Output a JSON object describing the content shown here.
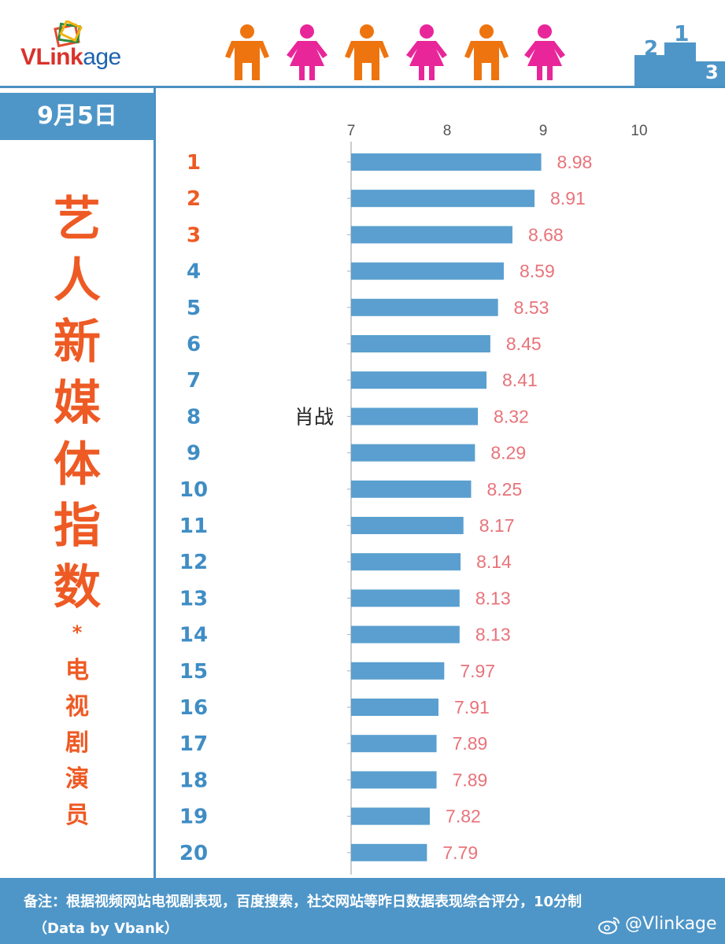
{
  "header": {
    "logo_main": "VLink",
    "logo_rest": "age",
    "podium_labels": [
      "2",
      "1",
      "3"
    ],
    "colors": {
      "male": "#ee7410",
      "female": "#e8269a",
      "accent": "#4f96c8"
    }
  },
  "sidebar": {
    "date": "9月5日",
    "title_chars": [
      "艺",
      "人",
      "新",
      "媒",
      "体",
      "指",
      "数"
    ],
    "star": "*",
    "sub_chars": [
      "电",
      "视",
      "剧",
      "演",
      "员"
    ]
  },
  "chart_data": {
    "type": "bar",
    "orientation": "horizontal",
    "xlim": [
      7,
      10
    ],
    "xticks": [
      "7",
      "8",
      "9",
      "10"
    ],
    "categories": [
      "1",
      "2",
      "3",
      "4",
      "5",
      "6",
      "7",
      "8",
      "9",
      "10",
      "11",
      "12",
      "13",
      "14",
      "15",
      "16",
      "17",
      "18",
      "19",
      "20"
    ],
    "category_labels": [
      "",
      "",
      "",
      "",
      "",
      "",
      "",
      "肖战",
      "",
      "",
      "",
      "",
      "",
      "",
      "",
      "",
      "",
      "",
      "",
      ""
    ],
    "values": [
      8.98,
      8.91,
      8.68,
      8.59,
      8.53,
      8.45,
      8.41,
      8.32,
      8.29,
      8.25,
      8.17,
      8.14,
      8.13,
      8.13,
      7.97,
      7.91,
      7.89,
      7.89,
      7.82,
      7.79
    ],
    "value_labels": [
      "8.98",
      "8.91",
      "8.68",
      "8.59",
      "8.53",
      "8.45",
      "8.41",
      "8.32",
      "8.29",
      "8.25",
      "8.17",
      "8.14",
      "8.13",
      "8.13",
      "7.97",
      "7.91",
      "7.89",
      "7.89",
      "7.82",
      "7.79"
    ],
    "bar_color": "#5a9fcf",
    "value_label_color": "#e8737a",
    "rank_color_top3": "#ee5a24",
    "rank_color": "#3f8dc5",
    "grid": false,
    "legend": "none"
  },
  "footer": {
    "note": "备注：根据视频网站电视剧表现，百度搜索，社交网站等昨日数据表现综合评分，10分制",
    "data_source": "（Data by Vbank）",
    "weibo_handle": "@Vlinkage"
  }
}
